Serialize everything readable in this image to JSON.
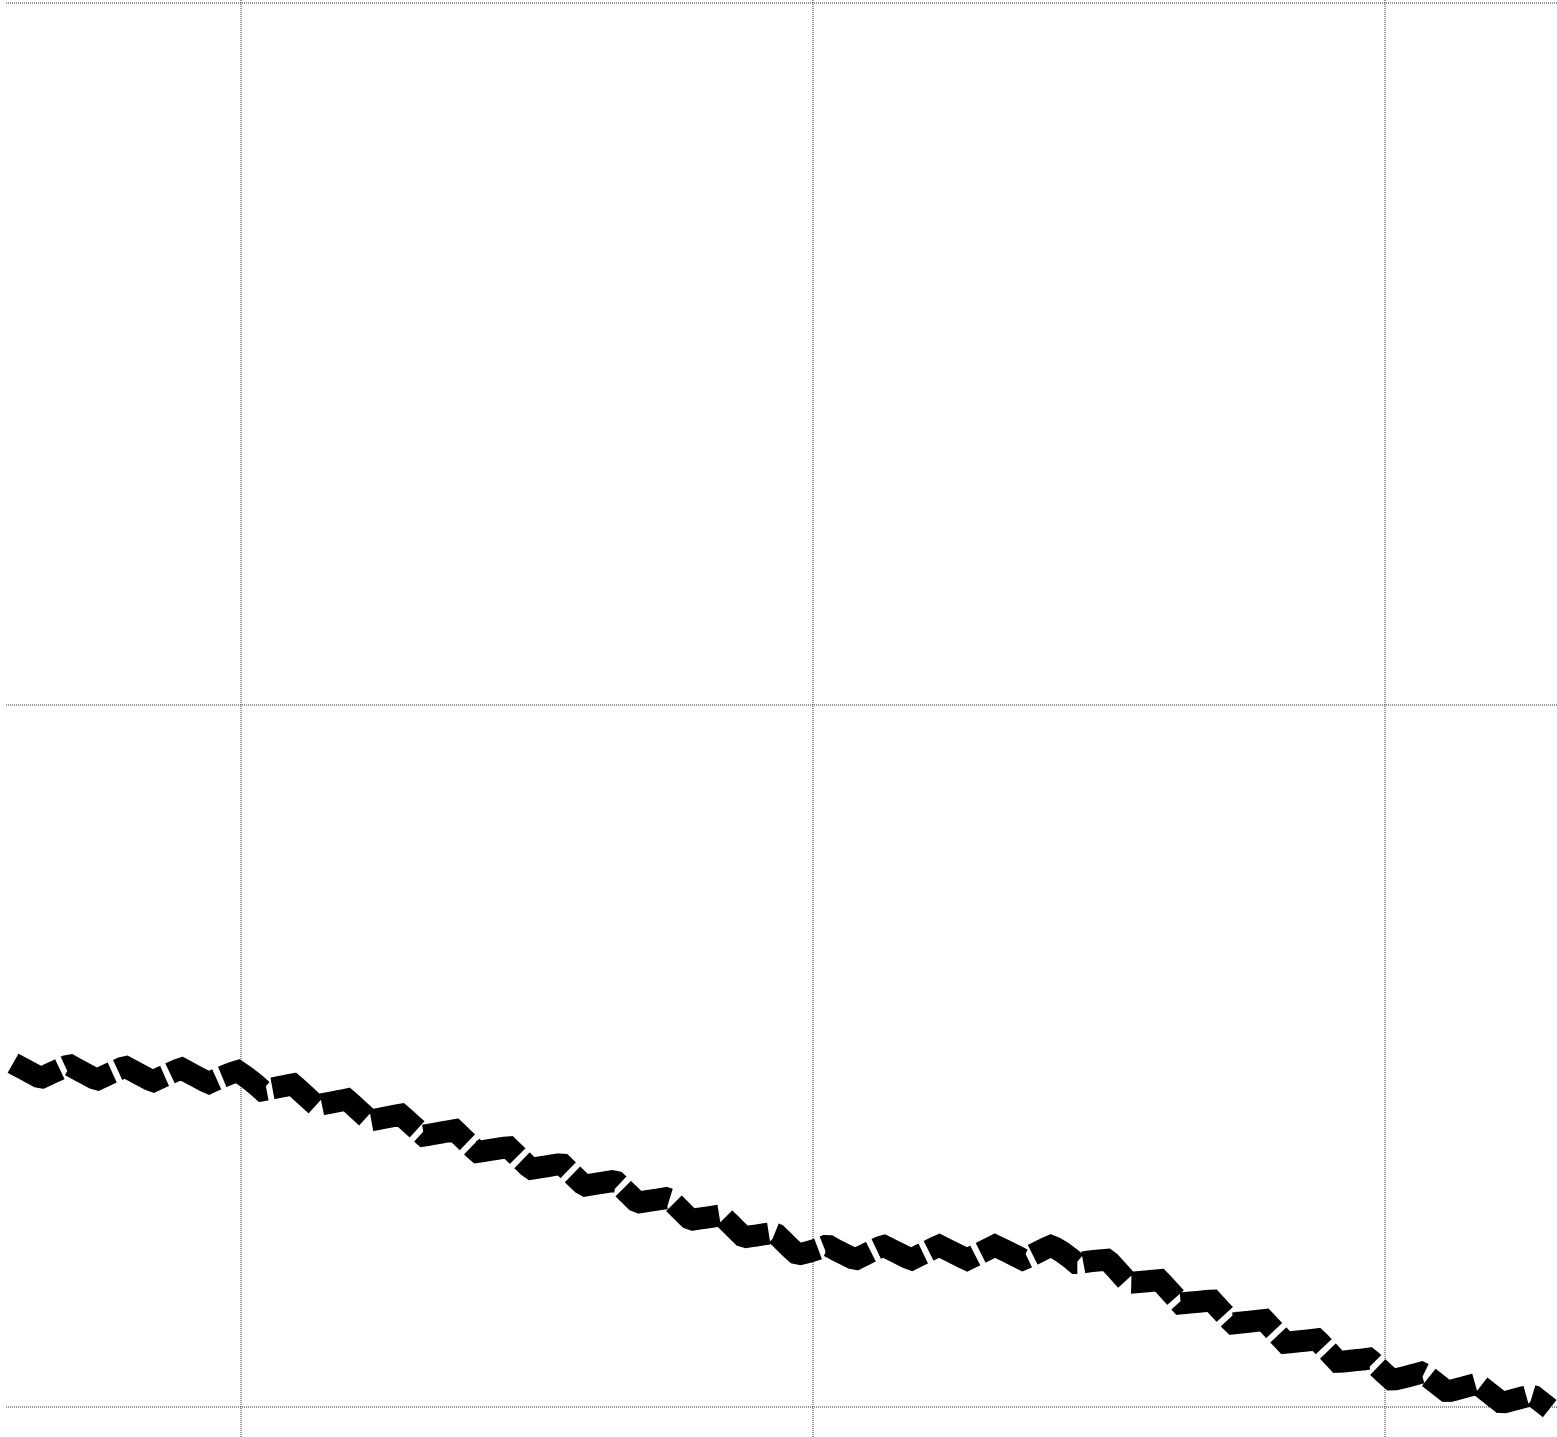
{
  "chart_data": {
    "type": "line",
    "title": "",
    "xlabel": "",
    "ylabel": "",
    "grid": true,
    "legend": "none",
    "xlim": [
      -0.41,
      2.3
    ],
    "ylim": [
      0,
      2
    ],
    "x_gridlines": [
      0,
      1,
      2
    ],
    "y_gridlines": [
      0,
      1,
      2
    ],
    "series": [
      {
        "color": "#000000",
        "style": "thick-zigzag",
        "x": [
          -0.41,
          0.0,
          0.35,
          0.7,
          1.0,
          1.2,
          1.45,
          1.7,
          2.0,
          2.3
        ],
        "y": [
          0.48,
          0.47,
          0.39,
          0.3,
          0.22,
          0.22,
          0.22,
          0.14,
          0.05,
          0.0
        ]
      }
    ]
  },
  "colors": {
    "background": "#ffffff",
    "grid": "#333333",
    "line": "#000000"
  }
}
